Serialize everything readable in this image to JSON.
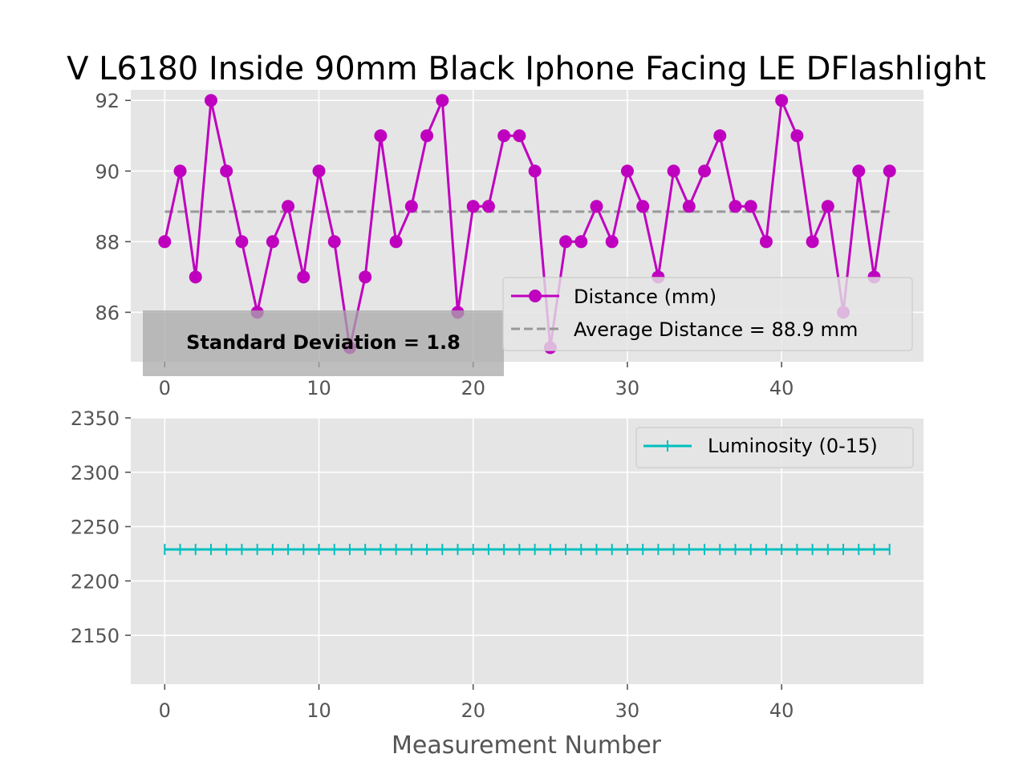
{
  "chart_data": [
    {
      "type": "line",
      "title": "V L6180 Inside 90mm Black Iphone Facing LE DFlashlight",
      "xlabel": "",
      "ylabel": "",
      "xlim": [
        -2.2,
        49.2
      ],
      "ylim": [
        84.6,
        92.3
      ],
      "xticks": [
        0,
        10,
        20,
        30,
        40
      ],
      "yticks": [
        86,
        88,
        90,
        92
      ],
      "grid": true,
      "legend_position": "lower-right",
      "x": [
        0,
        1,
        2,
        3,
        4,
        5,
        6,
        7,
        8,
        9,
        10,
        11,
        12,
        13,
        14,
        15,
        16,
        17,
        18,
        19,
        20,
        21,
        22,
        23,
        24,
        25,
        26,
        27,
        28,
        29,
        30,
        31,
        32,
        33,
        34,
        35,
        36,
        37,
        38,
        39,
        40,
        41,
        42,
        43,
        44,
        45,
        46,
        47
      ],
      "series": [
        {
          "name": "Distance (mm)",
          "color": "#bf00bf",
          "marker": "circle",
          "values": [
            88,
            90,
            87,
            92,
            90,
            88,
            86,
            88,
            89,
            87,
            90,
            88,
            85,
            87,
            91,
            88,
            89,
            91,
            92,
            86,
            89,
            89,
            91,
            91,
            90,
            85,
            88,
            88,
            89,
            88,
            90,
            89,
            87,
            90,
            89,
            90,
            91,
            89,
            89,
            88,
            92,
            91,
            88,
            89,
            86,
            90,
            87,
            90
          ]
        },
        {
          "name": "Average Distance = 88.9 mm",
          "color": "#999999",
          "style": "dashed",
          "value": 88.85
        }
      ],
      "annotation": "Standard Deviation = 1.8"
    },
    {
      "type": "line",
      "xlabel": "Measurement Number",
      "ylabel": "",
      "xlim": [
        -2.2,
        49.2
      ],
      "ylim": [
        2105,
        2350
      ],
      "xticks": [
        0,
        10,
        20,
        30,
        40
      ],
      "yticks": [
        2150,
        2200,
        2250,
        2300,
        2350
      ],
      "grid": true,
      "legend_position": "top-right",
      "x": [
        0,
        1,
        2,
        3,
        4,
        5,
        6,
        7,
        8,
        9,
        10,
        11,
        12,
        13,
        14,
        15,
        16,
        17,
        18,
        19,
        20,
        21,
        22,
        23,
        24,
        25,
        26,
        27,
        28,
        29,
        30,
        31,
        32,
        33,
        34,
        35,
        36,
        37,
        38,
        39,
        40,
        41,
        42,
        43,
        44,
        45,
        46,
        47
      ],
      "series": [
        {
          "name": "Luminosity (0-15)",
          "color": "#00bfbf",
          "marker": "plus",
          "values": [
            2229,
            2229,
            2229,
            2229,
            2229,
            2229,
            2229,
            2229,
            2229,
            2229,
            2229,
            2229,
            2229,
            2229,
            2229,
            2229,
            2229,
            2229,
            2229,
            2229,
            2229,
            2229,
            2229,
            2229,
            2229,
            2229,
            2229,
            2229,
            2229,
            2229,
            2229,
            2229,
            2229,
            2229,
            2229,
            2229,
            2229,
            2229,
            2229,
            2229,
            2229,
            2229,
            2229,
            2229,
            2229,
            2229,
            2229,
            2229
          ]
        }
      ]
    }
  ]
}
